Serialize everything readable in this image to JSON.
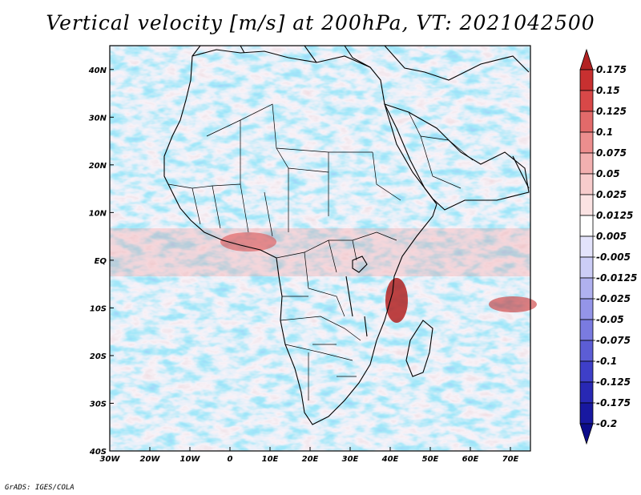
{
  "title": "Vertical velocity [m/s] at 200hPa, VT: 2021042500",
  "credit": "GrADS: IGES/COLA",
  "map": {
    "lon_ticks": [
      "30W",
      "20W",
      "10W",
      "0",
      "10E",
      "20E",
      "30E",
      "40E",
      "50E",
      "60E",
      "70E"
    ],
    "lat_ticks": [
      "40N",
      "30N",
      "20N",
      "10N",
      "EQ",
      "10S",
      "20S",
      "30S",
      "40S"
    ],
    "lon_range": [
      -30,
      75
    ],
    "lat_range": [
      -40,
      45
    ]
  },
  "colorbar": {
    "levels": [
      "0.175",
      "0.15",
      "0.125",
      "0.1",
      "0.075",
      "0.05",
      "0.025",
      "0.0125",
      "0.005",
      "-0.005",
      "-0.0125",
      "-0.025",
      "-0.05",
      "-0.075",
      "-0.1",
      "-0.125",
      "-0.175",
      "-0.2"
    ],
    "colors": [
      "#b22222",
      "#c83030",
      "#d84848",
      "#e26a6a",
      "#ec8e8e",
      "#f2b0b0",
      "#f7cccc",
      "#fbe3e3",
      "#ffffff",
      "#e3e3fb",
      "#cccdf6",
      "#b0b1ef",
      "#9495e8",
      "#7a7be0",
      "#5c5dd5",
      "#3e3fc8",
      "#2828b4",
      "#1818a0",
      "#0c0c8a"
    ]
  }
}
